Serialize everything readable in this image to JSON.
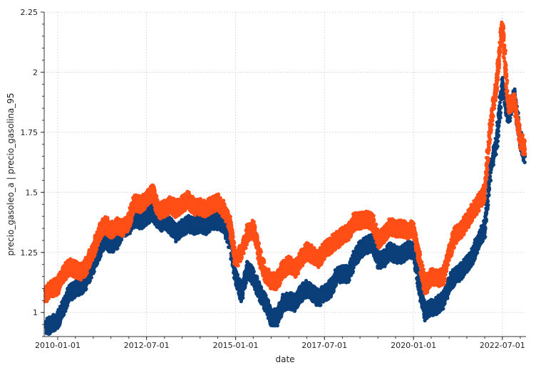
{
  "chart_data": {
    "type": "scatter",
    "xlabel": "date",
    "ylabel": "precio_gasoleo_a | precio_gasolina_95",
    "xlim": [
      "2009-08-15",
      "2023-03-01"
    ],
    "ylim": [
      0.9,
      2.25
    ],
    "x_ticks": [
      "2010-01-01",
      "2012-07-01",
      "2015-01-01",
      "2017-07-01",
      "2020-01-01",
      "2022-07-01"
    ],
    "y_ticks": [
      1,
      1.25,
      1.5,
      1.75,
      2,
      2.25
    ],
    "y_tick_labels": [
      "1",
      "1.25",
      "1.5",
      "1.75",
      "2",
      "2.25"
    ],
    "grid": true,
    "series": [
      {
        "color": "#0b3f7a",
        "x": [
          "2009-09-01",
          "2009-11-01",
          "2010-01-01",
          "2010-03-01",
          "2010-05-01",
          "2010-07-01",
          "2010-09-01",
          "2010-11-01",
          "2011-01-01",
          "2011-03-01",
          "2011-05-01",
          "2011-07-01",
          "2011-09-01",
          "2011-11-01",
          "2012-01-01",
          "2012-03-01",
          "2012-05-01",
          "2012-07-01",
          "2012-09-01",
          "2012-11-01",
          "2013-01-01",
          "2013-03-01",
          "2013-05-01",
          "2013-07-01",
          "2013-09-01",
          "2013-11-01",
          "2014-01-01",
          "2014-03-01",
          "2014-05-01",
          "2014-07-01",
          "2014-09-01",
          "2014-11-01",
          "2015-01-01",
          "2015-03-01",
          "2015-05-01",
          "2015-07-01",
          "2015-09-01",
          "2015-11-01",
          "2016-01-01",
          "2016-03-01",
          "2016-05-01",
          "2016-07-01",
          "2016-09-01",
          "2016-11-01",
          "2017-01-01",
          "2017-03-01",
          "2017-05-01",
          "2017-07-01",
          "2017-09-01",
          "2017-11-01",
          "2018-01-01",
          "2018-03-01",
          "2018-05-01",
          "2018-07-01",
          "2018-09-01",
          "2018-11-01",
          "2019-01-01",
          "2019-03-01",
          "2019-05-01",
          "2019-07-01",
          "2019-09-01",
          "2019-11-01",
          "2020-01-01",
          "2020-03-01",
          "2020-05-01",
          "2020-07-01",
          "2020-09-01",
          "2020-11-01",
          "2021-01-01",
          "2021-03-01",
          "2021-05-01",
          "2021-07-01",
          "2021-09-01",
          "2021-11-01",
          "2022-01-01",
          "2022-03-01",
          "2022-05-01",
          "2022-07-01",
          "2022-09-01",
          "2022-11-01",
          "2023-01-01",
          "2023-02-15"
        ],
        "y": [
          0.94,
          0.95,
          0.97,
          1.02,
          1.08,
          1.1,
          1.11,
          1.14,
          1.2,
          1.25,
          1.3,
          1.28,
          1.3,
          1.35,
          1.36,
          1.39,
          1.38,
          1.4,
          1.42,
          1.37,
          1.38,
          1.36,
          1.33,
          1.35,
          1.37,
          1.36,
          1.37,
          1.36,
          1.38,
          1.38,
          1.37,
          1.3,
          1.15,
          1.08,
          1.18,
          1.15,
          1.09,
          1.04,
          0.98,
          0.98,
          1.04,
          1.05,
          1.04,
          1.08,
          1.1,
          1.08,
          1.06,
          1.08,
          1.1,
          1.15,
          1.16,
          1.16,
          1.22,
          1.26,
          1.28,
          1.29,
          1.22,
          1.22,
          1.26,
          1.24,
          1.24,
          1.26,
          1.26,
          1.1,
          1.0,
          1.02,
          1.03,
          1.05,
          1.12,
          1.15,
          1.17,
          1.2,
          1.24,
          1.3,
          1.35,
          1.6,
          1.7,
          1.95,
          1.82,
          1.9,
          1.72,
          1.65
        ]
      },
      {
        "color": "#ff4f16",
        "x": [
          "2009-09-01",
          "2009-11-01",
          "2010-01-01",
          "2010-03-01",
          "2010-05-01",
          "2010-07-01",
          "2010-09-01",
          "2010-11-01",
          "2011-01-01",
          "2011-03-01",
          "2011-05-01",
          "2011-07-01",
          "2011-09-01",
          "2011-11-01",
          "2012-01-01",
          "2012-03-01",
          "2012-05-01",
          "2012-07-01",
          "2012-09-01",
          "2012-11-01",
          "2013-01-01",
          "2013-03-01",
          "2013-05-01",
          "2013-07-01",
          "2013-09-01",
          "2013-11-01",
          "2014-01-01",
          "2014-03-01",
          "2014-05-01",
          "2014-07-01",
          "2014-09-01",
          "2014-11-01",
          "2015-01-01",
          "2015-03-01",
          "2015-05-01",
          "2015-07-01",
          "2015-09-01",
          "2015-11-01",
          "2016-01-01",
          "2016-03-01",
          "2016-05-01",
          "2016-07-01",
          "2016-09-01",
          "2016-11-01",
          "2017-01-01",
          "2017-03-01",
          "2017-05-01",
          "2017-07-01",
          "2017-09-01",
          "2017-11-01",
          "2018-01-01",
          "2018-03-01",
          "2018-05-01",
          "2018-07-01",
          "2018-09-01",
          "2018-11-01",
          "2019-01-01",
          "2019-03-01",
          "2019-05-01",
          "2019-07-01",
          "2019-09-01",
          "2019-11-01",
          "2020-01-01",
          "2020-03-01",
          "2020-05-01",
          "2020-07-01",
          "2020-09-01",
          "2020-11-01",
          "2021-01-01",
          "2021-03-01",
          "2021-05-01",
          "2021-07-01",
          "2021-09-01",
          "2021-11-01",
          "2022-01-01",
          "2022-03-01",
          "2022-05-01",
          "2022-07-01",
          "2022-09-01",
          "2022-11-01",
          "2023-01-01",
          "2023-02-15"
        ],
        "y": [
          1.08,
          1.1,
          1.11,
          1.16,
          1.19,
          1.18,
          1.17,
          1.2,
          1.26,
          1.33,
          1.37,
          1.34,
          1.36,
          1.35,
          1.38,
          1.46,
          1.45,
          1.47,
          1.5,
          1.42,
          1.43,
          1.45,
          1.43,
          1.45,
          1.47,
          1.44,
          1.44,
          1.43,
          1.45,
          1.46,
          1.43,
          1.37,
          1.22,
          1.25,
          1.33,
          1.35,
          1.24,
          1.16,
          1.13,
          1.13,
          1.18,
          1.2,
          1.18,
          1.22,
          1.26,
          1.24,
          1.22,
          1.26,
          1.28,
          1.3,
          1.32,
          1.33,
          1.38,
          1.38,
          1.39,
          1.38,
          1.3,
          1.32,
          1.36,
          1.35,
          1.35,
          1.34,
          1.35,
          1.22,
          1.11,
          1.15,
          1.14,
          1.15,
          1.25,
          1.32,
          1.34,
          1.38,
          1.42,
          1.46,
          1.5,
          1.78,
          1.95,
          2.2,
          1.86,
          1.88,
          1.72,
          1.68
        ]
      }
    ]
  }
}
